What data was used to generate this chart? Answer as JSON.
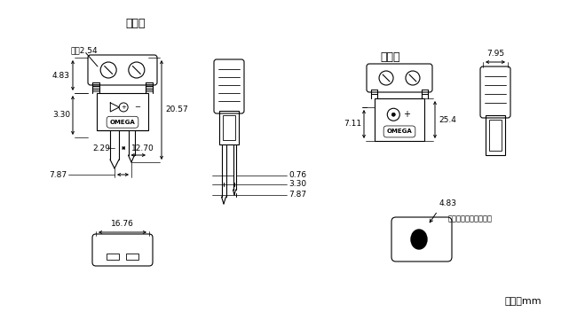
{
  "title_male": "オス型",
  "title_female": "メス型",
  "unit_label": "寸法：mm",
  "bg_color": "#ffffff",
  "line_color": "#000000",
  "dims": {
    "diameter": "直径2.54",
    "male_4_83": "4.83",
    "male_20_57": "20.57",
    "male_3_30": "3.30",
    "male_2_29": "2.29",
    "male_12_70": "12.70",
    "male_7_87": "7.87",
    "male_16_76": "16.76",
    "pin_0_76": "0.76",
    "pin_3_30": "3.30",
    "pin_7_87": "7.87",
    "female_7_95": "7.95",
    "female_25_4": "25.4",
    "female_7_11": "7.11",
    "female_4_83": "4.83",
    "wire_access": "ワイヤアクセスホール"
  }
}
